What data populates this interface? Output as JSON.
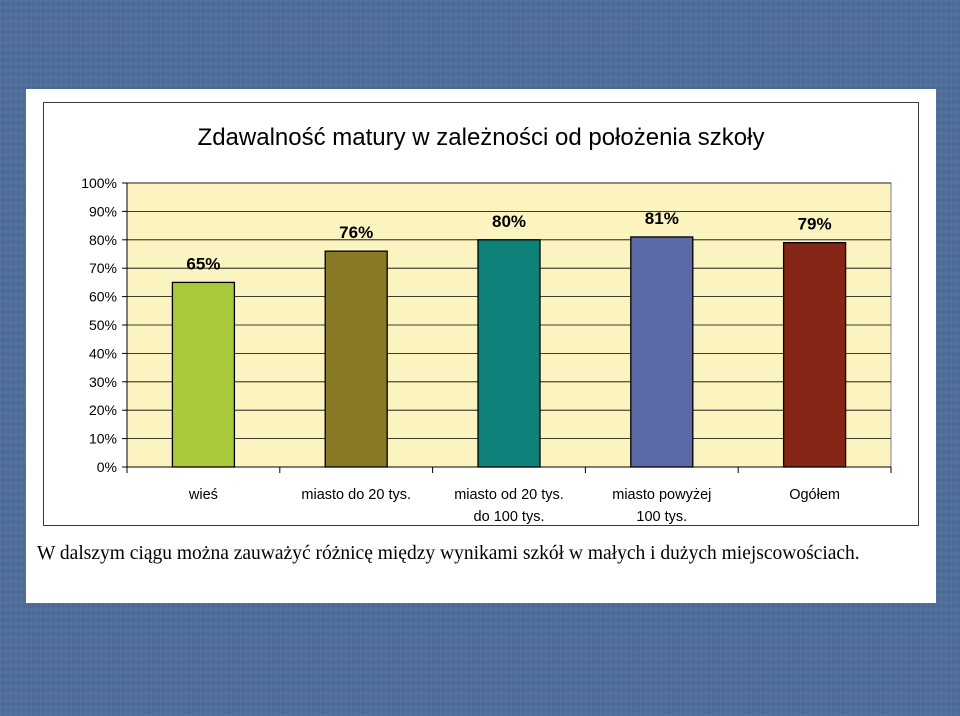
{
  "caption": "W dalszym ciągu można zauważyć różnicę między wynikami szkół w małych i dużych miejscowościach.",
  "chart_data": {
    "type": "bar",
    "title": "Zdawalność matury w zależności od położenia szkoły",
    "categories": [
      [
        "wieś"
      ],
      [
        "miasto do 20 tys."
      ],
      [
        "miasto od 20 tys.",
        "do 100 tys."
      ],
      [
        "miasto powyżej",
        "100 tys."
      ],
      [
        "Ogółem"
      ]
    ],
    "values": [
      65,
      76,
      80,
      81,
      79
    ],
    "data_labels": [
      "65%",
      "76%",
      "80%",
      "81%",
      "79%"
    ],
    "bar_colors": [
      "#a9c93a",
      "#8a7a28",
      "#0e827a",
      "#5b69a6",
      "#852617"
    ],
    "yticks": [
      "0%",
      "10%",
      "20%",
      "30%",
      "40%",
      "50%",
      "60%",
      "70%",
      "80%",
      "90%",
      "100%"
    ],
    "ylim": [
      0,
      100
    ],
    "grid": true,
    "plot_background": "#fbf4c0",
    "legend": false
  }
}
